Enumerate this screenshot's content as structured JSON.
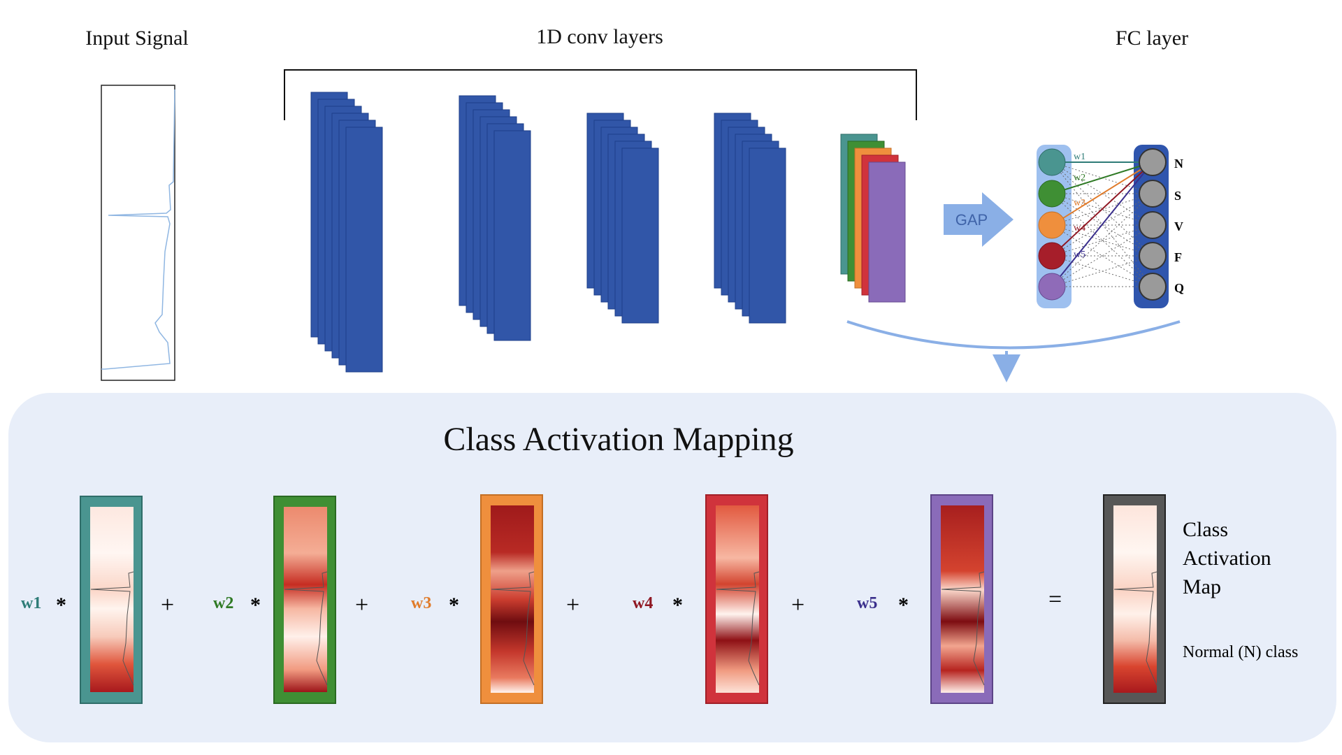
{
  "header": {
    "input_signal": "Input Signal",
    "conv_layers": "1D conv layers",
    "fc_layer": "FC layer"
  },
  "gap": {
    "label": "GAP"
  },
  "fc": {
    "weights": [
      "w1",
      "w2",
      "w3",
      "w4",
      "w5"
    ],
    "classes": [
      "N",
      "S",
      "V",
      "F",
      "Q"
    ]
  },
  "cam": {
    "title": "Class Activation Mapping",
    "multiply": "*",
    "plus": "+",
    "equals": "=",
    "result_label": [
      "Class",
      "Activation",
      "Map"
    ],
    "class_label": "Normal (N) class"
  },
  "colors": {
    "conv_blue": "#3156a8",
    "teal": "#4a9590",
    "green": "#3f8f34",
    "orange": "#ef8f3d",
    "red": "#a61e2a",
    "purple": "#8f6bb8",
    "panel": "#e8eef9",
    "arrow": "#8aafe6"
  }
}
